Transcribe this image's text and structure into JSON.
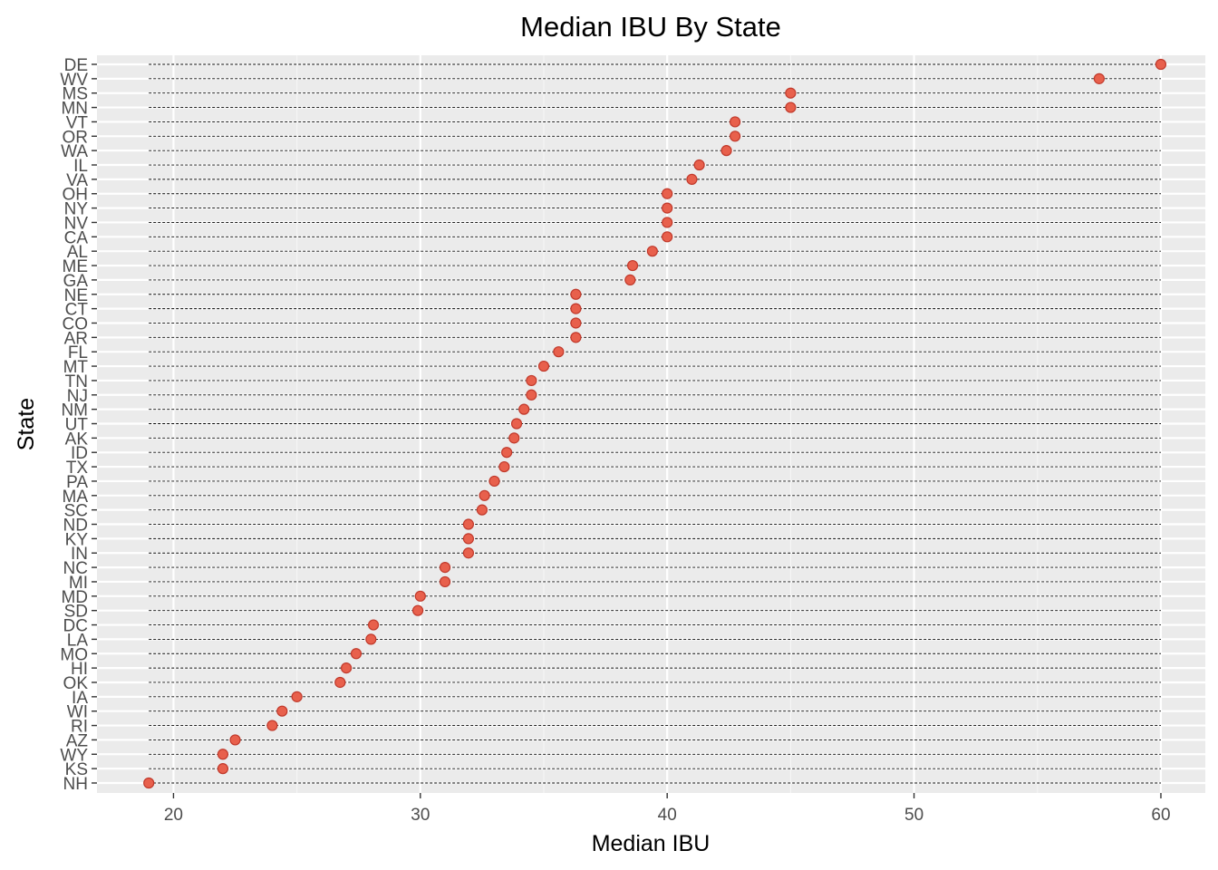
{
  "chart_data": {
    "type": "dot",
    "title": "Median IBU By State",
    "xlabel": "Median IBU",
    "ylabel": "State",
    "xlim": [
      16.9,
      61.8
    ],
    "xticks": [
      20,
      30,
      40,
      50,
      60
    ],
    "x_tick_labels": [
      "20",
      "30",
      "40",
      "50",
      "60"
    ],
    "grid": true,
    "legend": "none",
    "colors": {
      "panel_background": "#ebebeb",
      "grid_major": "#ffffff",
      "grid_minor": "#f5f5f5",
      "point_fill": "#e8604c",
      "point_edge": "#c0392b",
      "segment": "#000000"
    },
    "segment_start": 19,
    "categories": [
      "DE",
      "WV",
      "MS",
      "MN",
      "VT",
      "OR",
      "WA",
      "IL",
      "VA",
      "OH",
      "NY",
      "NV",
      "CA",
      "AL",
      "ME",
      "GA",
      "NE",
      "CT",
      "CO",
      "AR",
      "FL",
      "MT",
      "TN",
      "NJ",
      "NM",
      "UT",
      "AK",
      "ID",
      "TX",
      "PA",
      "MA",
      "SC",
      "ND",
      "KY",
      "IN",
      "NC",
      "MI",
      "MD",
      "SD",
      "DC",
      "LA",
      "MO",
      "HI",
      "OK",
      "IA",
      "WI",
      "RI",
      "AZ",
      "WY",
      "KS",
      "NH"
    ],
    "values": [
      60,
      57.5,
      45,
      45,
      42.75,
      42.75,
      42.4,
      41.3,
      41,
      40,
      40,
      40,
      40,
      39.4,
      38.6,
      38.5,
      36.3,
      36.3,
      36.3,
      36.3,
      35.6,
      35,
      34.5,
      34.5,
      34.2,
      33.9,
      33.8,
      33.5,
      33.4,
      33,
      32.6,
      32.5,
      31.95,
      31.95,
      31.95,
      31,
      31,
      30,
      29.9,
      28.1,
      28,
      27.4,
      27,
      26.75,
      25,
      24.4,
      24,
      22.5,
      22,
      22,
      19
    ]
  }
}
